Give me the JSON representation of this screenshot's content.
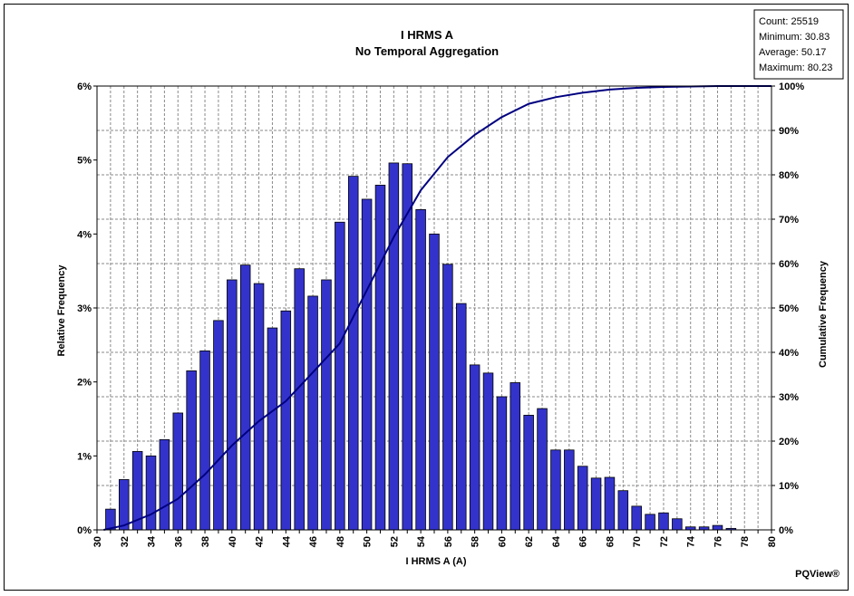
{
  "chart_data": {
    "type": "bar",
    "title": "I HRMS A",
    "subtitle": "No Temporal Aggregation",
    "xlabel": "I HRMS A (A)",
    "ylabel": "Relative Frequency",
    "y2label": "Cumulative Frequency",
    "brand": "PQView®",
    "stats": [
      "Count: 25519",
      "Minimum: 30.83",
      "Average: 50.17",
      "Maximum: 80.23"
    ],
    "xlim": [
      30,
      80
    ],
    "ylim": [
      0,
      6
    ],
    "y2lim": [
      0,
      100
    ],
    "x_ticks": [
      "30",
      "32",
      "34",
      "36",
      "38",
      "40",
      "42",
      "44",
      "46",
      "48",
      "50",
      "52",
      "54",
      "56",
      "58",
      "60",
      "62",
      "64",
      "66",
      "68",
      "70",
      "72",
      "74",
      "76",
      "78",
      "80"
    ],
    "y_ticks": [
      "0%",
      "1%",
      "2%",
      "3%",
      "4%",
      "5%",
      "6%"
    ],
    "y2_ticks": [
      "0%",
      "10%",
      "20%",
      "30%",
      "40%",
      "50%",
      "60%",
      "70%",
      "80%",
      "90%",
      "100%"
    ],
    "grid": true,
    "bar_color": "#3333cc",
    "line_color": "#000080",
    "series": [
      {
        "name": "Relative Frequency",
        "x": [
          31,
          32,
          33,
          34,
          35,
          36,
          37,
          38,
          39,
          40,
          41,
          42,
          43,
          44,
          45,
          46,
          47,
          48,
          49,
          50,
          51,
          52,
          53,
          54,
          55,
          56,
          57,
          58,
          59,
          60,
          61,
          62,
          63,
          64,
          65,
          66,
          67,
          68,
          69,
          70,
          71,
          72,
          73,
          74,
          75,
          76,
          77,
          78,
          79,
          80
        ],
        "values": [
          0.28,
          0.68,
          1.06,
          1.0,
          1.22,
          1.58,
          2.15,
          2.42,
          2.83,
          3.38,
          3.58,
          3.33,
          2.73,
          2.96,
          3.53,
          3.16,
          3.38,
          4.16,
          4.78,
          4.47,
          4.66,
          4.96,
          4.95,
          4.33,
          4.0,
          3.59,
          3.06,
          2.23,
          2.12,
          1.8,
          1.99,
          1.55,
          1.64,
          1.08,
          1.08,
          0.86,
          0.7,
          0.71,
          0.53,
          0.32,
          0.21,
          0.23,
          0.15,
          0.04,
          0.04,
          0.06,
          0.02,
          0.0,
          0.0,
          0.0
        ]
      },
      {
        "name": "Cumulative Frequency",
        "x": [
          30.5,
          32,
          34,
          36,
          38,
          40,
          42,
          44,
          46,
          48,
          50,
          52,
          54,
          56,
          58,
          60,
          62,
          64,
          66,
          68,
          70,
          72,
          74,
          76,
          78,
          80
        ],
        "values": [
          0,
          1,
          3.5,
          7,
          12.5,
          19,
          24.5,
          29,
          35.5,
          42,
          54,
          66,
          76.5,
          84,
          89,
          93,
          96,
          97.5,
          98.5,
          99.2,
          99.6,
          99.8,
          99.9,
          100,
          100,
          100
        ]
      }
    ]
  }
}
